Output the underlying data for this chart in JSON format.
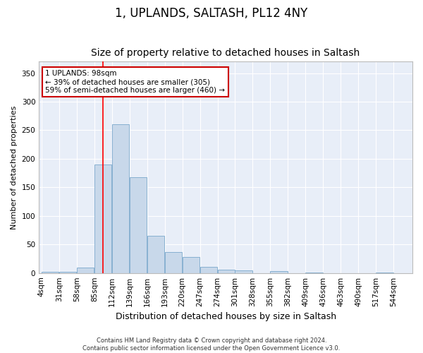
{
  "title": "1, UPLANDS, SALTASH, PL12 4NY",
  "subtitle": "Size of property relative to detached houses in Saltash",
  "xlabel": "Distribution of detached houses by size in Saltash",
  "ylabel": "Number of detached properties",
  "bar_color": "#c8d8ea",
  "bar_edge_color": "#7aa8cc",
  "background_color": "#e8eef8",
  "grid_color": "#ffffff",
  "bin_labels": [
    "4sqm",
    "31sqm",
    "58sqm",
    "85sqm",
    "112sqm",
    "139sqm",
    "166sqm",
    "193sqm",
    "220sqm",
    "247sqm",
    "274sqm",
    "301sqm",
    "328sqm",
    "355sqm",
    "382sqm",
    "409sqm",
    "436sqm",
    "463sqm",
    "490sqm",
    "517sqm",
    "544sqm"
  ],
  "bin_edges": [
    4,
    31,
    58,
    85,
    112,
    139,
    166,
    193,
    220,
    247,
    274,
    301,
    328,
    355,
    382,
    409,
    436,
    463,
    490,
    517,
    544
  ],
  "bar_heights": [
    2,
    2,
    10,
    190,
    260,
    168,
    65,
    37,
    28,
    11,
    6,
    4,
    0,
    3,
    0,
    1,
    0,
    0,
    0,
    1,
    0
  ],
  "red_line_x": 98,
  "ylim": [
    0,
    370
  ],
  "yticks": [
    0,
    50,
    100,
    150,
    200,
    250,
    300,
    350
  ],
  "annotation_text": "1 UPLANDS: 98sqm\n← 39% of detached houses are smaller (305)\n59% of semi-detached houses are larger (460) →",
  "annotation_box_color": "#ffffff",
  "annotation_edge_color": "#cc0000",
  "footer_text": "Contains HM Land Registry data © Crown copyright and database right 2024.\nContains public sector information licensed under the Open Government Licence v3.0.",
  "title_fontsize": 12,
  "subtitle_fontsize": 10,
  "xlabel_fontsize": 9,
  "ylabel_fontsize": 8,
  "tick_fontsize": 7.5,
  "annotation_fontsize": 7.5,
  "footer_fontsize": 6
}
